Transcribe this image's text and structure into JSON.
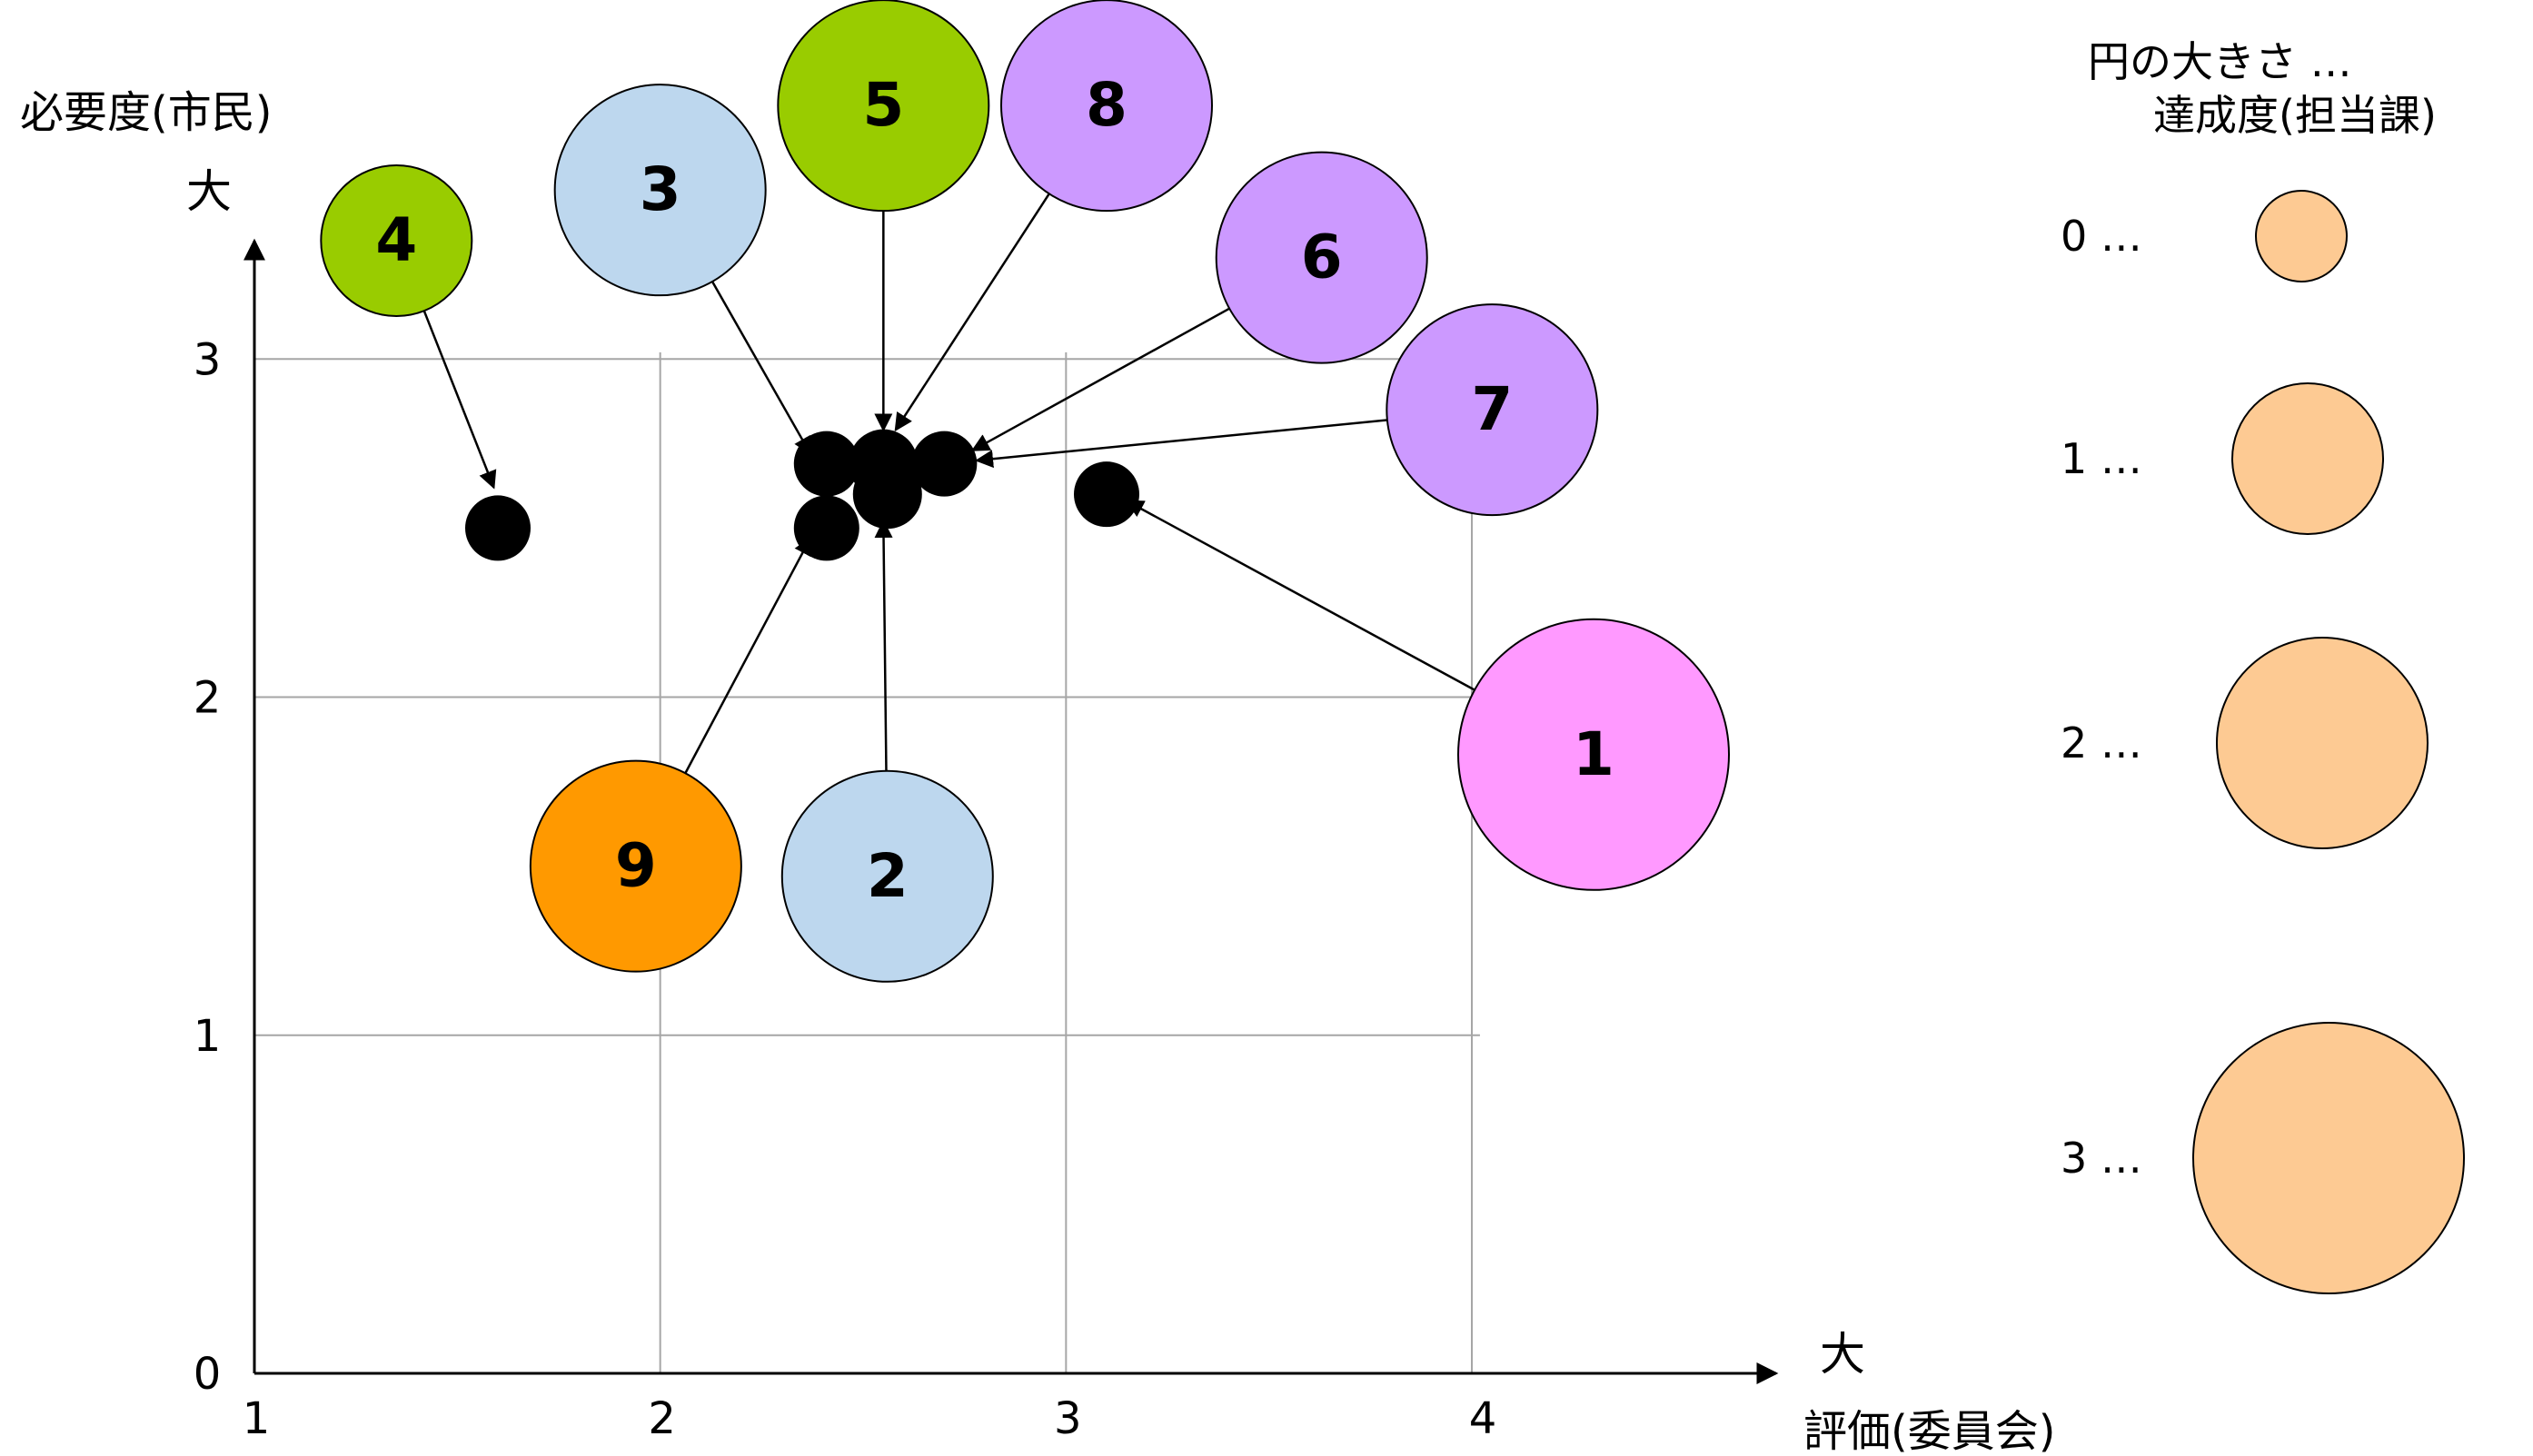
{
  "chart_data": {
    "type": "scatter",
    "title": "",
    "xlabel": "評価(委員会)",
    "ylabel": "必要度(市民)",
    "x_axis_end_label": "大",
    "y_axis_end_label": "大",
    "xlim": [
      1,
      4.75
    ],
    "ylim": [
      0,
      3.35
    ],
    "x_ticks": [
      "1",
      "2",
      "3",
      "4"
    ],
    "y_ticks": [
      "0",
      "1",
      "2",
      "3"
    ],
    "x_tick_values": [
      1,
      2,
      3,
      4
    ],
    "y_tick_values": [
      0,
      1,
      2,
      3
    ],
    "grid": true,
    "points": [
      {
        "x": 1.6,
        "y": 2.5
      },
      {
        "x": 2.41,
        "y": 2.69
      },
      {
        "x": 2.55,
        "y": 2.69
      },
      {
        "x": 2.7,
        "y": 2.69
      },
      {
        "x": 2.41,
        "y": 2.5
      },
      {
        "x": 2.56,
        "y": 2.6
      },
      {
        "x": 3.1,
        "y": 2.6
      }
    ],
    "bubbles": [
      {
        "label": "1",
        "x": 4.3,
        "y": 1.83,
        "size": 3,
        "color": "#ff99ff",
        "target": [
          3.15,
          2.58
        ]
      },
      {
        "label": "2",
        "x": 2.56,
        "y": 1.47,
        "size": 2,
        "color": "#bdd7ee",
        "target": [
          2.55,
          2.52
        ]
      },
      {
        "label": "3",
        "x": 2.0,
        "y": 3.5,
        "size": 2,
        "color": "#bdd7ee",
        "target": [
          2.37,
          2.72
        ]
      },
      {
        "label": "4",
        "x": 1.35,
        "y": 3.35,
        "size": 1,
        "color": "#99cc00",
        "target": [
          1.59,
          2.62
        ]
      },
      {
        "label": "5",
        "x": 2.55,
        "y": 3.75,
        "size": 2,
        "color": "#99cc00",
        "target": [
          2.55,
          2.79
        ]
      },
      {
        "label": "6",
        "x": 3.63,
        "y": 3.3,
        "size": 2,
        "color": "#cc99ff",
        "target": [
          2.77,
          2.73
        ]
      },
      {
        "label": "7",
        "x": 4.05,
        "y": 2.85,
        "size": 2,
        "color": "#cc99ff",
        "target": [
          2.78,
          2.7
        ]
      },
      {
        "label": "8",
        "x": 3.1,
        "y": 3.75,
        "size": 2,
        "color": "#cc99ff",
        "target": [
          2.58,
          2.79
        ]
      },
      {
        "label": "9",
        "x": 1.94,
        "y": 1.5,
        "size": 2,
        "color": "#ff9900",
        "target": [
          2.37,
          2.47
        ]
      }
    ]
  },
  "legend": {
    "title": "円の大きさ …",
    "subtitle": "達成度(担当課)",
    "items": [
      {
        "label": "0 …",
        "size": 0
      },
      {
        "label": "1 …",
        "size": 1
      },
      {
        "label": "2 …",
        "size": 2
      },
      {
        "label": "3 …",
        "size": 3
      }
    ],
    "color": "#fdca93"
  }
}
